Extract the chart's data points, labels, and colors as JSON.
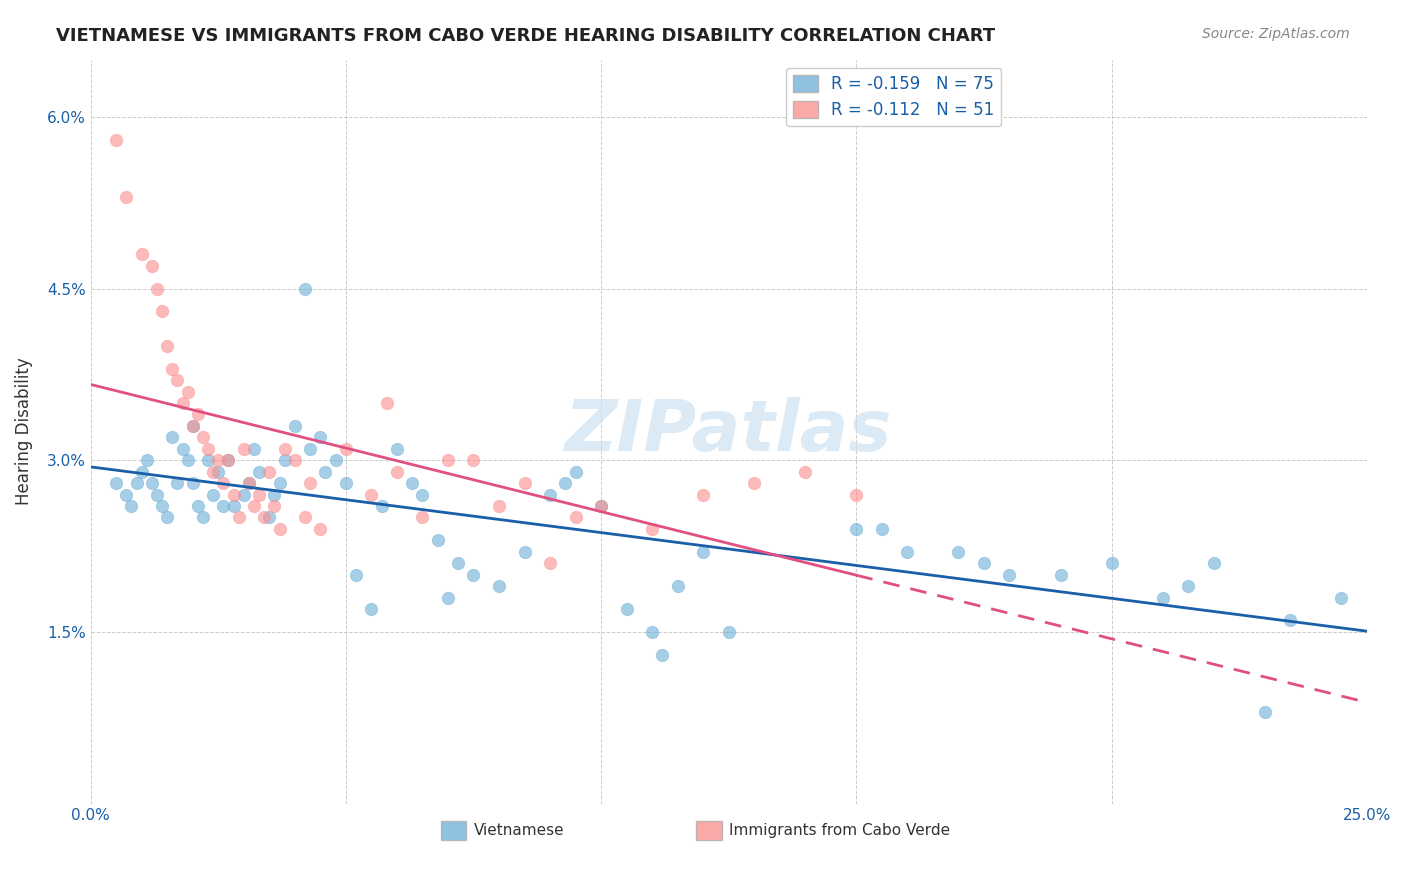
{
  "title": "VIETNAMESE VS IMMIGRANTS FROM CABO VERDE HEARING DISABILITY CORRELATION CHART",
  "source": "Source: ZipAtlas.com",
  "ylabel": "Hearing Disability",
  "xmin": 0.0,
  "xmax": 0.25,
  "ymin": 0.0,
  "ymax": 0.065,
  "yticks": [
    0.0,
    0.015,
    0.03,
    0.045,
    0.06
  ],
  "ytick_labels": [
    "",
    "1.5%",
    "3.0%",
    "4.5%",
    "6.0%"
  ],
  "xticks": [
    0.0,
    0.05,
    0.1,
    0.15,
    0.2,
    0.25
  ],
  "xtick_labels": [
    "0.0%",
    "",
    "",
    "",
    "",
    "25.0%"
  ],
  "legend_r1": "R = -0.159",
  "legend_n1": "N = 75",
  "legend_r2": "R = -0.112",
  "legend_n2": "N = 51",
  "blue_color": "#6baed6",
  "pink_color": "#fc8d8d",
  "line_blue": "#1a5fa8",
  "line_pink": "#e05080",
  "watermark": "ZIPatlas",
  "bottom_label1": "Vietnamese",
  "bottom_label2": "Immigrants from Cabo Verde",
  "blue_scatter": [
    [
      0.005,
      0.028
    ],
    [
      0.007,
      0.027
    ],
    [
      0.008,
      0.026
    ],
    [
      0.009,
      0.028
    ],
    [
      0.01,
      0.029
    ],
    [
      0.011,
      0.03
    ],
    [
      0.012,
      0.028
    ],
    [
      0.013,
      0.027
    ],
    [
      0.014,
      0.026
    ],
    [
      0.015,
      0.025
    ],
    [
      0.016,
      0.032
    ],
    [
      0.017,
      0.028
    ],
    [
      0.018,
      0.031
    ],
    [
      0.019,
      0.03
    ],
    [
      0.02,
      0.033
    ],
    [
      0.02,
      0.028
    ],
    [
      0.021,
      0.026
    ],
    [
      0.022,
      0.025
    ],
    [
      0.023,
      0.03
    ],
    [
      0.024,
      0.027
    ],
    [
      0.025,
      0.029
    ],
    [
      0.026,
      0.026
    ],
    [
      0.027,
      0.03
    ],
    [
      0.028,
      0.026
    ],
    [
      0.03,
      0.027
    ],
    [
      0.031,
      0.028
    ],
    [
      0.032,
      0.031
    ],
    [
      0.033,
      0.029
    ],
    [
      0.035,
      0.025
    ],
    [
      0.036,
      0.027
    ],
    [
      0.037,
      0.028
    ],
    [
      0.038,
      0.03
    ],
    [
      0.04,
      0.033
    ],
    [
      0.042,
      0.045
    ],
    [
      0.043,
      0.031
    ],
    [
      0.045,
      0.032
    ],
    [
      0.046,
      0.029
    ],
    [
      0.048,
      0.03
    ],
    [
      0.05,
      0.028
    ],
    [
      0.052,
      0.02
    ],
    [
      0.055,
      0.017
    ],
    [
      0.057,
      0.026
    ],
    [
      0.06,
      0.031
    ],
    [
      0.063,
      0.028
    ],
    [
      0.065,
      0.027
    ],
    [
      0.068,
      0.023
    ],
    [
      0.07,
      0.018
    ],
    [
      0.072,
      0.021
    ],
    [
      0.075,
      0.02
    ],
    [
      0.08,
      0.019
    ],
    [
      0.085,
      0.022
    ],
    [
      0.09,
      0.027
    ],
    [
      0.093,
      0.028
    ],
    [
      0.095,
      0.029
    ],
    [
      0.1,
      0.026
    ],
    [
      0.105,
      0.017
    ],
    [
      0.11,
      0.015
    ],
    [
      0.112,
      0.013
    ],
    [
      0.115,
      0.019
    ],
    [
      0.12,
      0.022
    ],
    [
      0.125,
      0.015
    ],
    [
      0.15,
      0.024
    ],
    [
      0.155,
      0.024
    ],
    [
      0.16,
      0.022
    ],
    [
      0.17,
      0.022
    ],
    [
      0.175,
      0.021
    ],
    [
      0.18,
      0.02
    ],
    [
      0.19,
      0.02
    ],
    [
      0.2,
      0.021
    ],
    [
      0.21,
      0.018
    ],
    [
      0.215,
      0.019
    ],
    [
      0.22,
      0.021
    ],
    [
      0.23,
      0.008
    ],
    [
      0.235,
      0.016
    ],
    [
      0.245,
      0.018
    ]
  ],
  "pink_scatter": [
    [
      0.005,
      0.058
    ],
    [
      0.007,
      0.053
    ],
    [
      0.01,
      0.048
    ],
    [
      0.012,
      0.047
    ],
    [
      0.013,
      0.045
    ],
    [
      0.014,
      0.043
    ],
    [
      0.015,
      0.04
    ],
    [
      0.016,
      0.038
    ],
    [
      0.017,
      0.037
    ],
    [
      0.018,
      0.035
    ],
    [
      0.019,
      0.036
    ],
    [
      0.02,
      0.033
    ],
    [
      0.021,
      0.034
    ],
    [
      0.022,
      0.032
    ],
    [
      0.023,
      0.031
    ],
    [
      0.024,
      0.029
    ],
    [
      0.025,
      0.03
    ],
    [
      0.026,
      0.028
    ],
    [
      0.027,
      0.03
    ],
    [
      0.028,
      0.027
    ],
    [
      0.029,
      0.025
    ],
    [
      0.03,
      0.031
    ],
    [
      0.031,
      0.028
    ],
    [
      0.032,
      0.026
    ],
    [
      0.033,
      0.027
    ],
    [
      0.034,
      0.025
    ],
    [
      0.035,
      0.029
    ],
    [
      0.036,
      0.026
    ],
    [
      0.037,
      0.024
    ],
    [
      0.038,
      0.031
    ],
    [
      0.04,
      0.03
    ],
    [
      0.042,
      0.025
    ],
    [
      0.043,
      0.028
    ],
    [
      0.045,
      0.024
    ],
    [
      0.05,
      0.031
    ],
    [
      0.055,
      0.027
    ],
    [
      0.058,
      0.035
    ],
    [
      0.06,
      0.029
    ],
    [
      0.065,
      0.025
    ],
    [
      0.07,
      0.03
    ],
    [
      0.075,
      0.03
    ],
    [
      0.08,
      0.026
    ],
    [
      0.085,
      0.028
    ],
    [
      0.09,
      0.021
    ],
    [
      0.095,
      0.025
    ],
    [
      0.1,
      0.026
    ],
    [
      0.11,
      0.024
    ],
    [
      0.12,
      0.027
    ],
    [
      0.13,
      0.028
    ],
    [
      0.14,
      0.029
    ],
    [
      0.15,
      0.027
    ]
  ]
}
